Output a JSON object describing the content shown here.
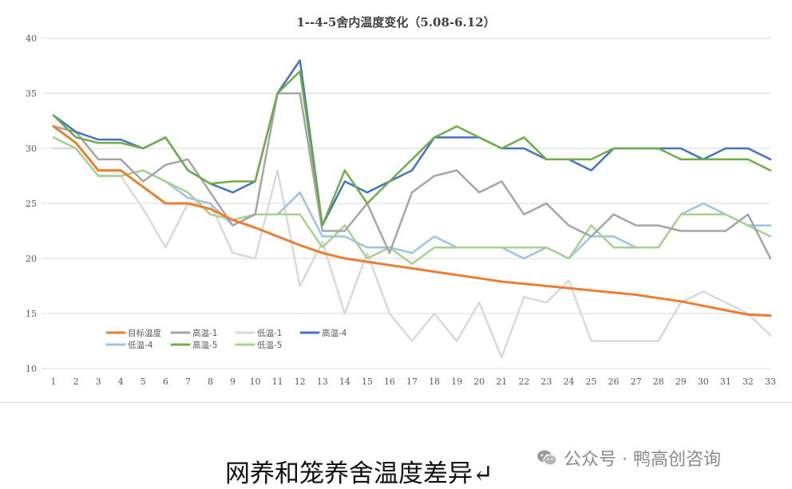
{
  "chart_data": {
    "type": "line",
    "title": "1--4-5舍内温度变化（5.08-6.12）",
    "xlabel": "",
    "ylabel": "",
    "ylim": [
      10,
      40
    ],
    "yticks": [
      "10",
      "15",
      "20",
      "25",
      "30",
      "35",
      "40"
    ],
    "categories": [
      "1",
      "2",
      "3",
      "4",
      "5",
      "6",
      "7",
      "8",
      "9",
      "10",
      "11",
      "12",
      "13",
      "14",
      "15",
      "16",
      "17",
      "18",
      "19",
      "20",
      "21",
      "22",
      "23",
      "24",
      "25",
      "26",
      "27",
      "28",
      "29",
      "30",
      "31",
      "32",
      "33"
    ],
    "grid": true,
    "legend_position": "bottom-left",
    "series": [
      {
        "name": "目标温度",
        "color": "#ED7D31",
        "width": 3,
        "values": [
          32,
          30.5,
          28,
          28,
          26.5,
          25,
          25,
          24.5,
          23.5,
          22.8,
          22,
          21.2,
          20.5,
          20,
          19.7,
          19.4,
          19.1,
          18.8,
          18.5,
          18.2,
          17.9,
          17.7,
          17.5,
          17.3,
          17.1,
          16.9,
          16.7,
          16.4,
          16.1,
          15.7,
          15.3,
          14.9,
          14.8
        ]
      },
      {
        "name": "高温-1",
        "color": "#A5A5A5",
        "width": 2.5,
        "values": [
          32,
          31.5,
          29,
          29,
          27,
          28.5,
          29,
          26,
          23,
          24,
          35,
          35,
          22.5,
          22.5,
          25,
          20.5,
          26,
          27.5,
          28,
          26,
          27,
          24,
          25,
          23,
          22,
          24,
          23,
          23,
          22.5,
          22.5,
          22.5,
          24,
          20
        ]
      },
      {
        "name": "低温-1",
        "color": "#D9D9D9",
        "width": 2.5,
        "values": [
          30,
          30,
          27.5,
          27.5,
          24.5,
          21,
          25,
          25,
          20.5,
          20,
          28,
          17.5,
          21.5,
          15,
          20.5,
          15,
          12.5,
          15,
          12.5,
          16,
          11,
          16.5,
          16,
          18,
          12.5,
          12.5,
          12.5,
          12.5,
          16,
          17,
          16,
          15,
          13
        ]
      },
      {
        "name": "高温-4",
        "color": "#4472C4",
        "width": 2.5,
        "values": [
          33,
          31.5,
          30.8,
          30.8,
          30,
          31,
          28,
          26.8,
          26,
          27,
          35,
          38,
          23,
          27,
          26,
          27,
          28,
          31,
          31,
          31,
          30,
          30,
          29,
          29,
          28,
          30,
          30,
          30,
          30,
          29,
          30,
          30,
          29
        ]
      },
      {
        "name": "低温-4",
        "color": "#9DC3E6",
        "width": 2.5,
        "values": [
          31,
          30,
          27.5,
          27.5,
          28,
          27,
          25.5,
          25,
          23,
          24,
          24,
          26,
          22,
          22,
          21,
          21,
          20.5,
          22,
          21,
          21,
          21,
          20,
          21,
          20,
          22,
          22,
          21,
          21,
          24,
          25,
          24,
          23,
          23
        ]
      },
      {
        "name": "高温-5",
        "color": "#70AD47",
        "width": 2.5,
        "values": [
          33,
          31,
          30.5,
          30.5,
          30,
          31,
          28,
          26.8,
          27,
          27,
          35,
          37,
          23,
          28,
          25,
          27,
          29,
          31,
          32,
          31,
          30,
          31,
          29,
          29,
          29,
          30,
          30,
          30,
          29,
          29,
          29,
          29,
          28
        ]
      },
      {
        "name": "低温-5",
        "color": "#A9D18E",
        "width": 2.5,
        "values": [
          31,
          30,
          27.5,
          27.5,
          28,
          27,
          26,
          24,
          23.5,
          24,
          24,
          24,
          21,
          23,
          20,
          21,
          19.5,
          21,
          21,
          21,
          21,
          21,
          21,
          20,
          23,
          21,
          21,
          21,
          24,
          24,
          24,
          23,
          22
        ]
      }
    ]
  },
  "caption": "网养和笼养舍温度差异↵",
  "watermark": {
    "icon": "wechat-icon",
    "text": "公众号 · 鸭高创咨询"
  }
}
